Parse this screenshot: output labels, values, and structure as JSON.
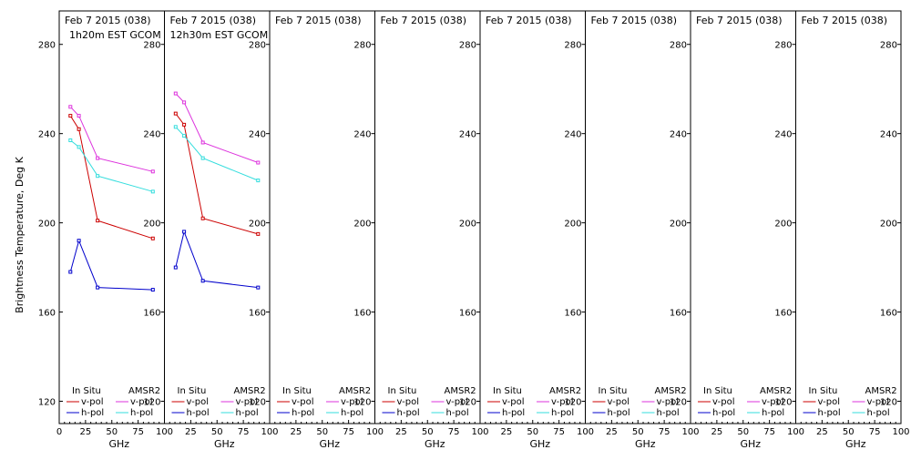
{
  "chart_data": {
    "type": "line",
    "ylabel": "Brightness Temperature, Deg K",
    "xlabel": "GHz",
    "xlim": [
      0,
      100
    ],
    "ylim": [
      110,
      295
    ],
    "yticks": [
      120,
      160,
      200,
      240,
      280
    ],
    "xticks": [
      0,
      25,
      50,
      75,
      100
    ],
    "x": [
      10.65,
      18.7,
      36.5,
      89.0
    ],
    "legend": {
      "in_situ_header": "In Situ",
      "amsr2_header": "AMSR2",
      "in_situ_vpol": "v-pol",
      "in_situ_hpol": "h-pol",
      "amsr2_vpol": "v-pol",
      "amsr2_hpol": "h-pol"
    },
    "colors": {
      "in_situ_vpol": "#cc0000",
      "in_situ_hpol": "#0000cc",
      "amsr2_vpol": "#dd33dd",
      "amsr2_hpol": "#33dddd"
    },
    "panels": [
      {
        "title": "Feb 7 2015 (038)",
        "subtitle": "1h20m EST GCOM",
        "series": [
          {
            "name": "In Situ v-pol",
            "key": "in_situ_vpol",
            "values": [
              248,
              242,
              201,
              193
            ]
          },
          {
            "name": "In Situ h-pol",
            "key": "in_situ_hpol",
            "values": [
              178,
              192,
              171,
              170
            ]
          },
          {
            "name": "AMSR2 v-pol",
            "key": "amsr2_vpol",
            "values": [
              252,
              248,
              229,
              223
            ]
          },
          {
            "name": "AMSR2 h-pol",
            "key": "amsr2_hpol",
            "values": [
              237,
              234,
              221,
              214
            ]
          }
        ]
      },
      {
        "title": "Feb 7 2015 (038)",
        "subtitle": "12h30m EST GCOM",
        "series": [
          {
            "name": "In Situ v-pol",
            "key": "in_situ_vpol",
            "values": [
              249,
              244,
              202,
              195
            ]
          },
          {
            "name": "In Situ h-pol",
            "key": "in_situ_hpol",
            "values": [
              180,
              196,
              174,
              171
            ]
          },
          {
            "name": "AMSR2 v-pol",
            "key": "amsr2_vpol",
            "values": [
              258,
              254,
              236,
              227
            ]
          },
          {
            "name": "AMSR2 h-pol",
            "key": "amsr2_hpol",
            "values": [
              243,
              239,
              229,
              219
            ]
          }
        ]
      },
      {
        "title": "Feb 7 2015 (038)",
        "subtitle": "",
        "series": []
      },
      {
        "title": "Feb 7 2015 (038)",
        "subtitle": "",
        "series": []
      },
      {
        "title": "Feb 7 2015 (038)",
        "subtitle": "",
        "series": []
      },
      {
        "title": "Feb 7 2015 (038)",
        "subtitle": "",
        "series": []
      },
      {
        "title": "Feb 7 2015 (038)",
        "subtitle": "",
        "series": []
      },
      {
        "title": "Feb 7 2015 (038)",
        "subtitle": "",
        "series": []
      }
    ]
  }
}
